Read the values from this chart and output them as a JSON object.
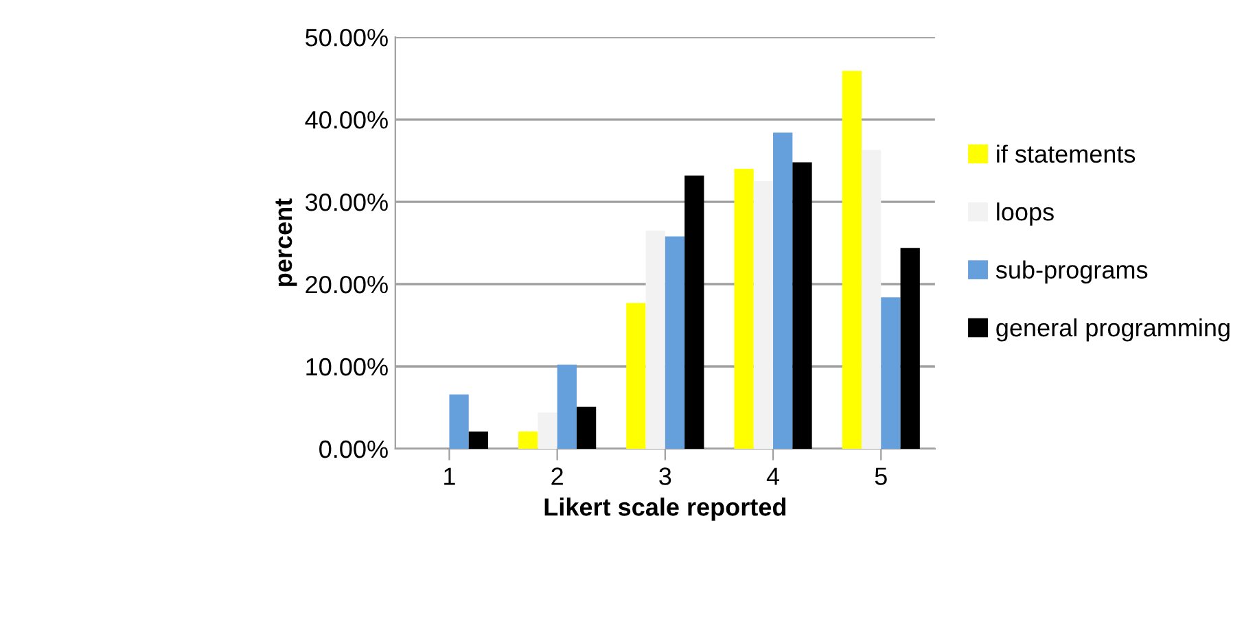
{
  "chart_data": {
    "type": "bar",
    "xlabel": "Likert scale reported",
    "ylabel": "percent",
    "categories": [
      "1",
      "2",
      "3",
      "4",
      "5"
    ],
    "series": [
      {
        "name": "if statements",
        "color": "#ffff00",
        "values": [
          0,
          2.1,
          17.7,
          34.0,
          45.9
        ]
      },
      {
        "name": "loops",
        "color": "#f2f2f2",
        "values": [
          0,
          4.4,
          26.5,
          32.5,
          36.3
        ]
      },
      {
        "name": "sub-programs",
        "color": "#659fdc",
        "values": [
          6.6,
          10.2,
          25.8,
          38.4,
          18.4
        ]
      },
      {
        "name": "general programming",
        "color": "#000000",
        "values": [
          2.1,
          5.1,
          33.2,
          34.8,
          24.4
        ]
      }
    ],
    "ylim": [
      0,
      50
    ],
    "yticks": [
      {
        "value": 0,
        "label": "0.00%"
      },
      {
        "value": 10,
        "label": "10.00%"
      },
      {
        "value": 20,
        "label": "20.00%"
      },
      {
        "value": 30,
        "label": "30.00%"
      },
      {
        "value": 40,
        "label": "40.00%"
      },
      {
        "value": 50,
        "label": "50.00%"
      }
    ],
    "grid": "y",
    "legend": "right"
  }
}
